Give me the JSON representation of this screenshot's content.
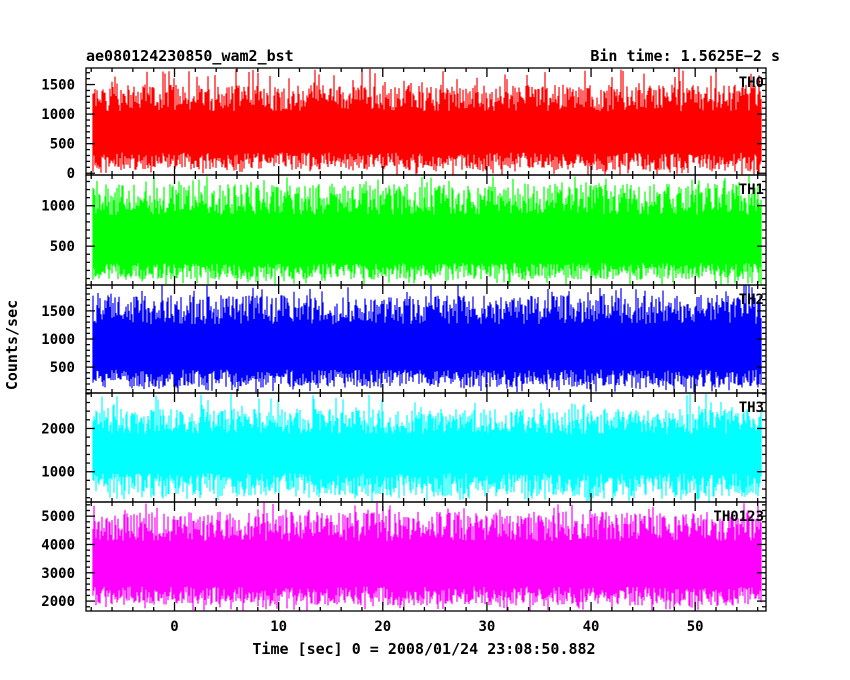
{
  "header": {
    "title": "ae080124230850_wam2_bst",
    "bin_time": "Bin time: 1.5625E−2 s"
  },
  "chart_data": {
    "type": "line",
    "xlabel": "Time [sec] 0 = 2008/01/24 23:08:50.882",
    "ylabel": "Counts/sec",
    "xlim": [
      -8.5,
      56.8
    ],
    "data_x_range": [
      -7.8,
      56.3
    ],
    "x_ticks": [
      0,
      10,
      20,
      30,
      40,
      50
    ],
    "panels": [
      {
        "name": "TH0",
        "color": "#ff0000",
        "ylim": [
          -30,
          1780
        ],
        "y_ticks": [
          0,
          500,
          1000,
          1500
        ],
        "baseline_mean": 780,
        "typical_low": 300,
        "typical_high": 1300,
        "notes": "upper envelope spiking to ~1780; lower envelope dips to ~80"
      },
      {
        "name": "TH1",
        "color": "#00ff00",
        "ylim": [
          20,
          1380
        ],
        "y_ticks": [
          500,
          1000
        ],
        "baseline_mean": 650,
        "typical_low": 250,
        "typical_high": 1100,
        "notes": "spikes to ~1380; lower envelope ~30"
      },
      {
        "name": "TH2",
        "color": "#0000ff",
        "ylim": [
          40,
          1960
        ],
        "y_ticks": [
          500,
          1000,
          1500
        ],
        "baseline_mean": 850,
        "typical_low": 400,
        "typical_high": 1550,
        "notes": "spikes to ~1960"
      },
      {
        "name": "TH3",
        "color": "#00ffff",
        "ylim": [
          300,
          2820
        ],
        "y_ticks": [
          1000,
          2000
        ],
        "baseline_mean": 1500,
        "typical_low": 900,
        "typical_high": 2200,
        "notes": "spikes to ~2800; dips to ~450"
      },
      {
        "name": "TH0123",
        "color": "#ff00ff",
        "ylim": [
          1650,
          5500
        ],
        "y_ticks": [
          2000,
          3000,
          4000,
          5000
        ],
        "baseline_mean": 3550,
        "typical_low": 2400,
        "typical_high": 4700,
        "notes": "spikes to ~5400; dips to ~1950"
      }
    ]
  }
}
